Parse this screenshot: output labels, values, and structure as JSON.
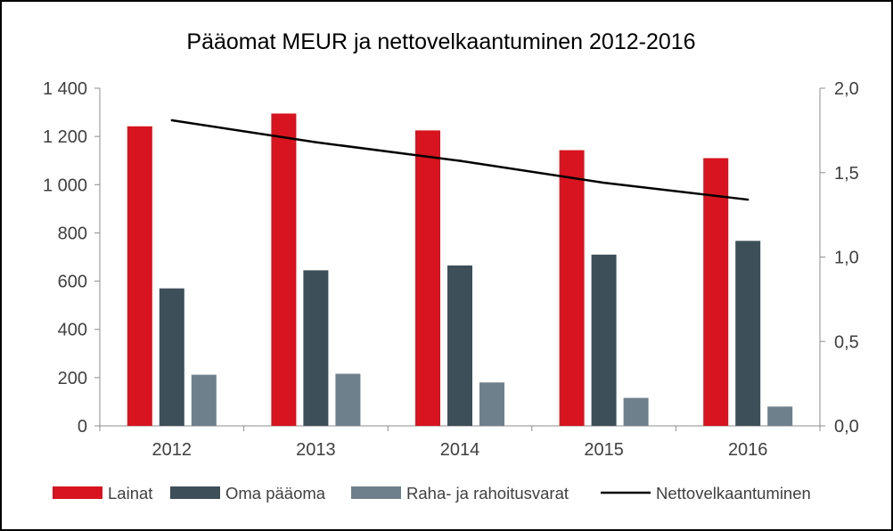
{
  "chart_data": {
    "type": "bar",
    "title": "Pääomat MEUR ja nettovelkaantuminen 2012-2016",
    "categories": [
      "2012",
      "2013",
      "2014",
      "2015",
      "2016"
    ],
    "series": [
      {
        "name": "Lainat",
        "type": "bar",
        "axis": "left",
        "color": "#d7141f",
        "values": [
          1242,
          1295,
          1225,
          1143,
          1110
        ]
      },
      {
        "name": "Oma pääoma",
        "type": "bar",
        "axis": "left",
        "color": "#3d4f59",
        "values": [
          570,
          645,
          665,
          710,
          767
        ]
      },
      {
        "name": "Raha- ja rahoitusvarat",
        "type": "bar",
        "axis": "left",
        "color": "#6e808b",
        "values": [
          212,
          216,
          180,
          116,
          80
        ]
      },
      {
        "name": "Nettovelkaantuminen",
        "type": "line",
        "axis": "right",
        "color": "#000000",
        "values": [
          1.81,
          1.68,
          1.57,
          1.44,
          1.34
        ]
      }
    ],
    "y_left": {
      "range": [
        0,
        1400
      ],
      "ticks": [
        0,
        200,
        400,
        600,
        800,
        1000,
        1200,
        1400
      ],
      "tick_labels": [
        "0",
        "200",
        "400",
        "600",
        "800",
        "1 000",
        "1 200",
        "1 400"
      ]
    },
    "y_right": {
      "range": [
        0,
        2.0
      ],
      "ticks": [
        0,
        0.5,
        1.0,
        1.5,
        2.0
      ],
      "tick_labels": [
        "0,0",
        "0,5",
        "1,0",
        "1,5",
        "2,0"
      ]
    },
    "grid": false,
    "legend_position": "bottom"
  }
}
